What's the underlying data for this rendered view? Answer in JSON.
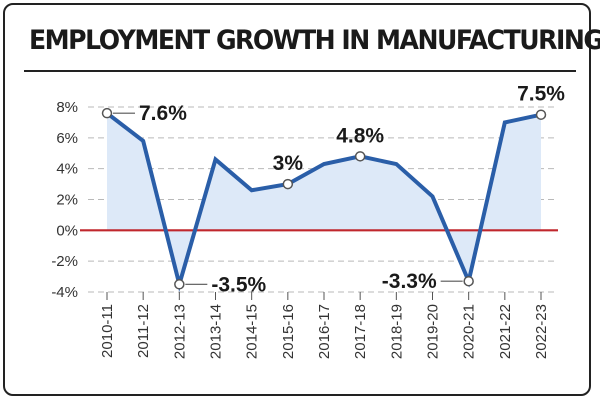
{
  "chart_data": {
    "type": "line",
    "title": "EMPLOYMENT GROWTH IN MANUFACTURING",
    "categories": [
      "2010-11",
      "2011-12",
      "2012-13",
      "2013-14",
      "2014-15",
      "2015-16",
      "2016-17",
      "2017-18",
      "2018-19",
      "2019-20",
      "2020-21",
      "2021-22",
      "2022-23"
    ],
    "series": [
      {
        "values": [
          7.6,
          5.8,
          -3.5,
          4.6,
          2.6,
          3.0,
          4.3,
          4.8,
          4.3,
          2.2,
          -3.3,
          7.0,
          7.5
        ]
      }
    ],
    "ylim": [
      -4,
      8
    ],
    "yticks": [
      -4,
      -2,
      0,
      2,
      4,
      6,
      8
    ],
    "ytick_labels": [
      "-4%",
      "-2%",
      "0%",
      "2%",
      "4%",
      "6%",
      "8%"
    ],
    "grid": "horizontal dashed",
    "annotations": [
      {
        "index": 0,
        "text": "7.6%",
        "placement": "right"
      },
      {
        "index": 2,
        "text": "-3.5%",
        "placement": "right"
      },
      {
        "index": 5,
        "text": "3%",
        "placement": "above"
      },
      {
        "index": 7,
        "text": "4.8%",
        "placement": "above"
      },
      {
        "index": 10,
        "text": "-3.3%",
        "placement": "left"
      },
      {
        "index": 12,
        "text": "7.5%",
        "placement": "above"
      }
    ],
    "colors": {
      "line": "#2a5ea8",
      "fill": "#dde9f8",
      "zero_line": "#c0272d",
      "grid": "#b9b9b9",
      "marker_fill": "#ffffff"
    }
  }
}
